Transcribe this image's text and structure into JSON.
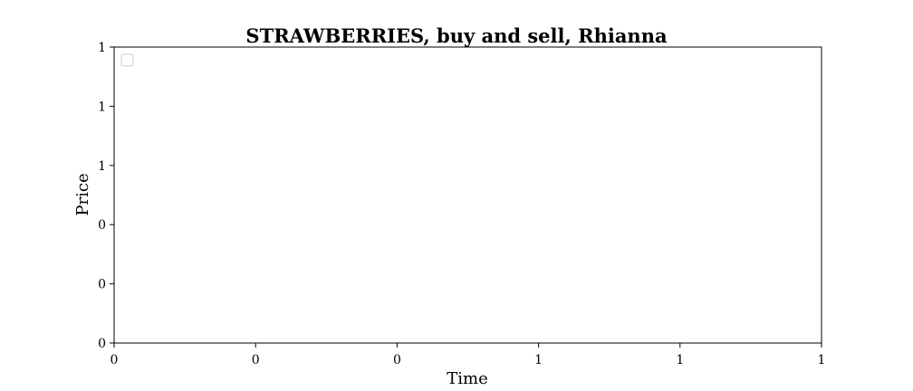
{
  "chart_data": {
    "type": "line",
    "title": "STRAWBERRIES, buy and sell, Rhianna",
    "xlabel": "Time",
    "ylabel": "Price",
    "x_tick_labels": [
      "0",
      "0",
      "0",
      "1",
      "1",
      "1"
    ],
    "y_tick_labels": [
      "0",
      "0",
      "0",
      "1",
      "1",
      "1"
    ],
    "series": [],
    "grid": false,
    "legend_position": "top-left",
    "legend_entries": []
  },
  "colors": {
    "axis": "#000000",
    "background": "#ffffff",
    "legend_border": "#cccccc"
  }
}
